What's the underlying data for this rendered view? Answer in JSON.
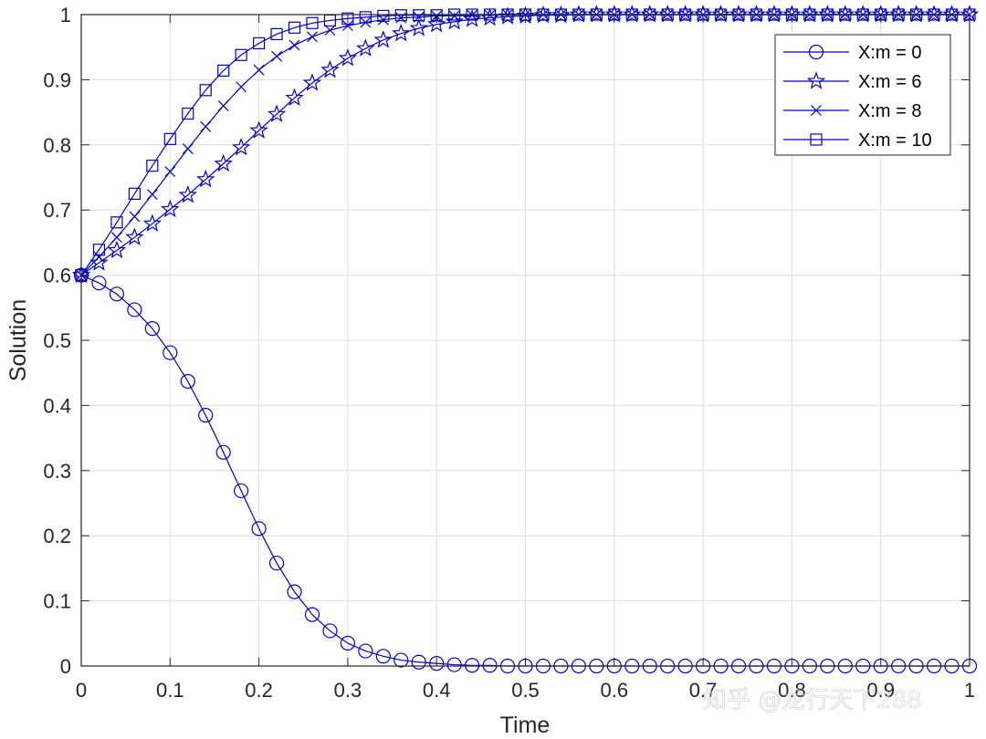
{
  "chart_data": {
    "type": "line",
    "title": "",
    "xlabel": "Time",
    "ylabel": "Solution",
    "xlim": [
      0,
      1
    ],
    "ylim": [
      0,
      1
    ],
    "grid": true,
    "legend_position": "top-right",
    "x_ticks": [
      "0",
      "0.1",
      "0.2",
      "0.3",
      "0.4",
      "0.5",
      "0.6",
      "0.7",
      "0.8",
      "0.9",
      "1"
    ],
    "y_ticks": [
      "0",
      "0.1",
      "0.2",
      "0.3",
      "0.4",
      "0.5",
      "0.6",
      "0.7",
      "0.8",
      "0.9",
      "1"
    ],
    "x": [
      0,
      0.02,
      0.04,
      0.06,
      0.08,
      0.1,
      0.12,
      0.14,
      0.16,
      0.18,
      0.2,
      0.22,
      0.24,
      0.26,
      0.28,
      0.3,
      0.32,
      0.34,
      0.36,
      0.38,
      0.4,
      0.42,
      0.44,
      0.46,
      0.48,
      0.5,
      0.52,
      0.54,
      0.56,
      0.58,
      0.6,
      0.62,
      0.64,
      0.66,
      0.68,
      0.7,
      0.72,
      0.74,
      0.76,
      0.78,
      0.8,
      0.82,
      0.84,
      0.86,
      0.88,
      0.9,
      0.92,
      0.94,
      0.96,
      0.98,
      1
    ],
    "series": [
      {
        "name": "X:m = 0",
        "marker": "circle",
        "color": "#0000cc",
        "values": [
          0.6,
          0.588,
          0.571,
          0.547,
          0.518,
          0.481,
          0.437,
          0.385,
          0.328,
          0.269,
          0.211,
          0.158,
          0.114,
          0.079,
          0.054,
          0.035,
          0.023,
          0.015,
          0.009,
          0.006,
          0.004,
          0.002,
          0.001,
          0.001,
          0.0,
          0.0,
          0.0,
          0.0,
          0.0,
          0.0,
          0.0,
          0.0,
          0.0,
          0.0,
          0.0,
          0.0,
          0.0,
          0.0,
          0.0,
          0.0,
          0.0,
          0.0,
          0.0,
          0.0,
          0.0,
          0.0,
          0.0,
          0.0,
          0.0,
          0.0,
          0.0
        ]
      },
      {
        "name": "X:m = 6",
        "marker": "star",
        "color": "#0000cc",
        "values": [
          0.6,
          0.619,
          0.638,
          0.658,
          0.679,
          0.701,
          0.723,
          0.747,
          0.771,
          0.796,
          0.822,
          0.847,
          0.872,
          0.895,
          0.915,
          0.933,
          0.948,
          0.961,
          0.971,
          0.979,
          0.985,
          0.989,
          0.993,
          0.995,
          0.997,
          0.998,
          0.999,
          0.999,
          1.0,
          1.0,
          1.0,
          1.0,
          1.0,
          1.0,
          1.0,
          1.0,
          1.0,
          1.0,
          1.0,
          1.0,
          1.0,
          1.0,
          1.0,
          1.0,
          1.0,
          1.0,
          1.0,
          1.0,
          1.0,
          1.0,
          1.0
        ]
      },
      {
        "name": "X:m = 8",
        "marker": "x",
        "color": "#0000cc",
        "values": [
          0.6,
          0.628,
          0.658,
          0.69,
          0.724,
          0.759,
          0.794,
          0.828,
          0.86,
          0.889,
          0.915,
          0.936,
          0.953,
          0.966,
          0.976,
          0.983,
          0.988,
          0.992,
          0.995,
          0.996,
          0.998,
          0.998,
          0.999,
          0.999,
          1.0,
          1.0,
          1.0,
          1.0,
          1.0,
          1.0,
          1.0,
          1.0,
          1.0,
          1.0,
          1.0,
          1.0,
          1.0,
          1.0,
          1.0,
          1.0,
          1.0,
          1.0,
          1.0,
          1.0,
          1.0,
          1.0,
          1.0,
          1.0,
          1.0,
          1.0,
          1.0
        ]
      },
      {
        "name": "X:m = 10",
        "marker": "square",
        "color": "#0000cc",
        "values": [
          0.6,
          0.639,
          0.681,
          0.725,
          0.768,
          0.809,
          0.848,
          0.884,
          0.914,
          0.938,
          0.956,
          0.97,
          0.98,
          0.987,
          0.991,
          0.994,
          0.996,
          0.998,
          0.999,
          0.999,
          0.999,
          1.0,
          1.0,
          1.0,
          1.0,
          1.0,
          1.0,
          1.0,
          1.0,
          1.0,
          1.0,
          1.0,
          1.0,
          1.0,
          1.0,
          1.0,
          1.0,
          1.0,
          1.0,
          1.0,
          1.0,
          1.0,
          1.0,
          1.0,
          1.0,
          1.0,
          1.0,
          1.0,
          1.0,
          1.0,
          1.0
        ]
      }
    ]
  },
  "watermark": {
    "text": "知乎 @龙行天下288"
  }
}
